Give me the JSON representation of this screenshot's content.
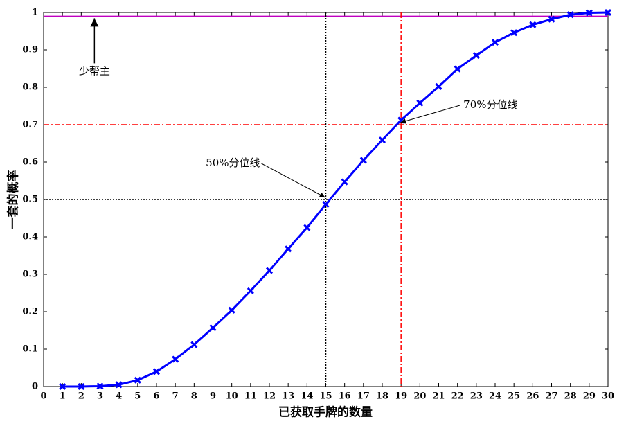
{
  "chart_data": {
    "type": "line",
    "x_label": "已获取手牌的数量",
    "y_label": "一套的概率",
    "x": [
      1,
      2,
      3,
      4,
      5,
      6,
      7,
      8,
      9,
      10,
      11,
      12,
      13,
      14,
      15,
      16,
      17,
      18,
      19,
      20,
      21,
      22,
      23,
      24,
      25,
      26,
      27,
      28,
      29,
      30
    ],
    "series": [
      {
        "color": "#0000ff",
        "values": [
          0,
          0,
          0.001,
          0.005,
          0.017,
          0.04,
          0.073,
          0.112,
          0.157,
          0.204,
          0.256,
          0.31,
          0.368,
          0.425,
          0.487,
          0.547,
          0.605,
          0.659,
          0.712,
          0.758,
          0.802,
          0.849,
          0.885,
          0.92,
          0.946,
          0.967,
          0.982,
          0.994,
          0.999,
          1.0
        ]
      }
    ],
    "xlim": [
      0,
      30
    ],
    "xticks": [
      0,
      1,
      2,
      3,
      4,
      5,
      6,
      7,
      8,
      9,
      10,
      11,
      12,
      13,
      14,
      15,
      16,
      17,
      18,
      19,
      20,
      21,
      22,
      23,
      24,
      25,
      26,
      27,
      28,
      29,
      30
    ],
    "ylim": [
      0,
      1
    ],
    "yticks": [
      0,
      0.1,
      0.2,
      0.3,
      0.4,
      0.5,
      0.6,
      0.7,
      0.8,
      0.9,
      1
    ],
    "reference_lines": [
      {
        "axis": "y",
        "value": 0.99,
        "color": "#c000c0",
        "style": "solid"
      },
      {
        "axis": "y",
        "value": 0.7,
        "color": "#ff0000",
        "style": "dashdot"
      },
      {
        "axis": "y",
        "value": 0.5,
        "color": "#000000",
        "style": "dotted"
      },
      {
        "axis": "x",
        "value": 15,
        "color": "#000000",
        "style": "dotted"
      },
      {
        "axis": "x",
        "value": 19,
        "color": "#ff0000",
        "style": "dashdot"
      }
    ],
    "annotations": [
      {
        "text": "少帮主",
        "x": 2.7,
        "y": 0.99
      },
      {
        "text": "50%分位线",
        "x": 15,
        "y": 0.5
      },
      {
        "text": "70%分位线",
        "x": 19,
        "y": 0.7
      }
    ]
  }
}
